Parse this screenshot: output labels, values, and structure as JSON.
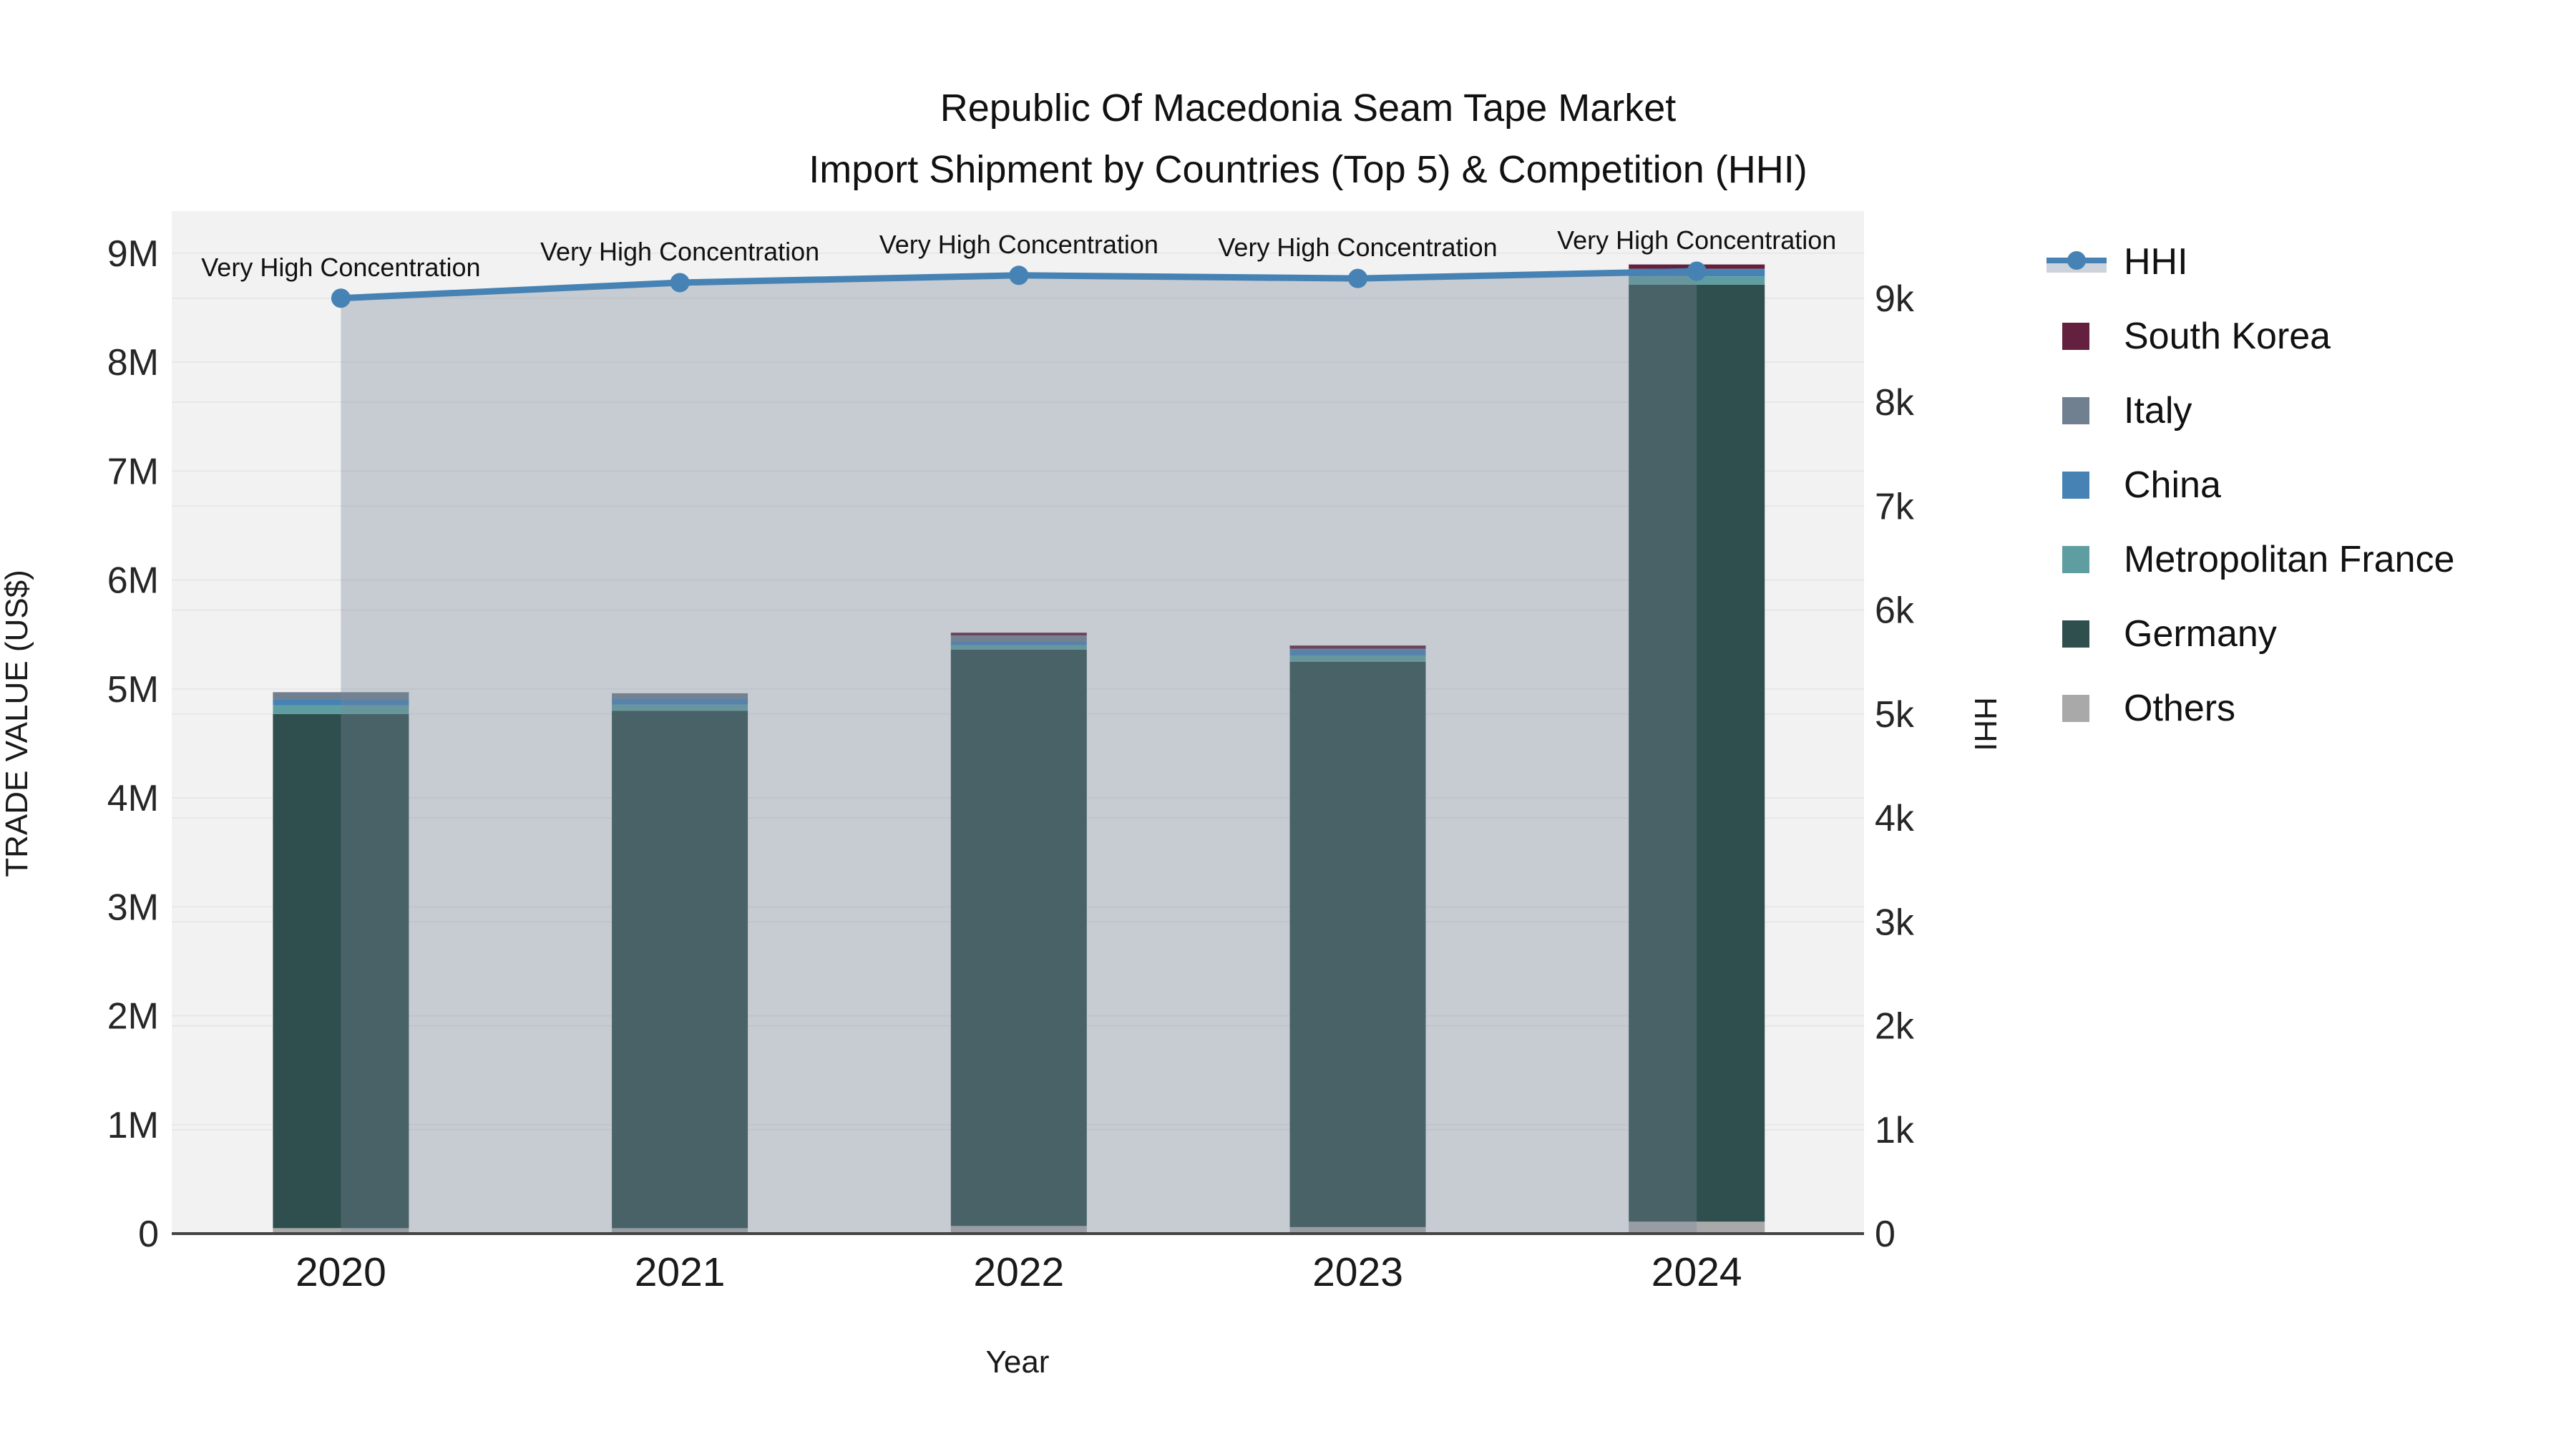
{
  "title": {
    "line1": "Republic Of Macedonia Seam Tape Market",
    "line2": "Import Shipment by Countries (Top 5) & Competition (HHI)"
  },
  "axes": {
    "y_left": {
      "title": "TRADE VALUE (US$)",
      "ticks": [
        "0",
        "1M",
        "2M",
        "3M",
        "4M",
        "5M",
        "6M",
        "7M",
        "8M",
        "9M"
      ]
    },
    "y_right": {
      "title": "HHI",
      "ticks": [
        "0",
        "1k",
        "2k",
        "3k",
        "4k",
        "5k",
        "6k",
        "7k",
        "8k",
        "9k"
      ]
    },
    "x": {
      "title": "Year"
    }
  },
  "annotations": [
    "Very High Concentration",
    "Very High Concentration",
    "Very High Concentration",
    "Very High Concentration",
    "Very High Concentration"
  ],
  "colors": {
    "plot_background": "#f2f2f2",
    "gridline": "#e7e7e7",
    "axis_line": "#444444",
    "hhi_line": "#4682b4",
    "hhi_area_fill": "rgba(119,136,153,0.35)",
    "hhi_legend_band": "#ccd3dc",
    "title_text": "#111111"
  },
  "legend": {
    "position": "right",
    "items": [
      {
        "label": "HHI",
        "type": "line",
        "color": "#4682b4"
      },
      {
        "label": "South Korea",
        "type": "square",
        "color": "#64203f"
      },
      {
        "label": "Italy",
        "type": "square",
        "color": "#708090"
      },
      {
        "label": "China",
        "type": "square",
        "color": "#4682b4"
      },
      {
        "label": "Metropolitan France",
        "type": "square",
        "color": "#5f9ea0"
      },
      {
        "label": "Germany",
        "type": "square",
        "color": "#2f4f4f"
      },
      {
        "label": "Others",
        "type": "square",
        "color": "#a9a9a9"
      }
    ]
  },
  "chart_data": {
    "type": "combo: stacked bar (left axis) + line with area fill (right axis)",
    "categories": [
      "2020",
      "2021",
      "2022",
      "2023",
      "2024"
    ],
    "bar_unit": "US$",
    "stack_note": "bars stacked bottom-to-top: Others, Germany, Metropolitan France, China, Italy, South Korea",
    "series": [
      {
        "name": "South Korea",
        "color": "#64203f",
        "values": [
          0,
          0,
          26000,
          30000,
          39000
        ]
      },
      {
        "name": "Italy",
        "color": "#708090",
        "values": [
          70000,
          50000,
          55000,
          8000,
          10000
        ]
      },
      {
        "name": "China",
        "color": "#4682b4",
        "values": [
          50000,
          55000,
          35000,
          53000,
          60000
        ]
      },
      {
        "name": "Metropolitan France",
        "color": "#5f9ea0",
        "values": [
          80000,
          55000,
          40000,
          57000,
          77000
        ]
      },
      {
        "name": "Germany",
        "color": "#2f4f4f",
        "values": [
          4720000,
          4750000,
          5290000,
          5190000,
          8600000
        ]
      },
      {
        "name": "Others",
        "color": "#a9a9a9",
        "values": [
          50000,
          50000,
          70000,
          60000,
          110000
        ]
      }
    ],
    "bar_totals": [
      4970000,
      4960000,
      5516000,
      5398000,
      8896000
    ],
    "line_series": {
      "name": "HHI",
      "axis": "right",
      "color": "#4682b4",
      "values": [
        9000,
        9150,
        9220,
        9190,
        9260
      ]
    },
    "ylim_left": [
      0,
      9400000
    ],
    "ylim_right": [
      0,
      9700
    ],
    "grid": true,
    "legend_position": "right"
  }
}
